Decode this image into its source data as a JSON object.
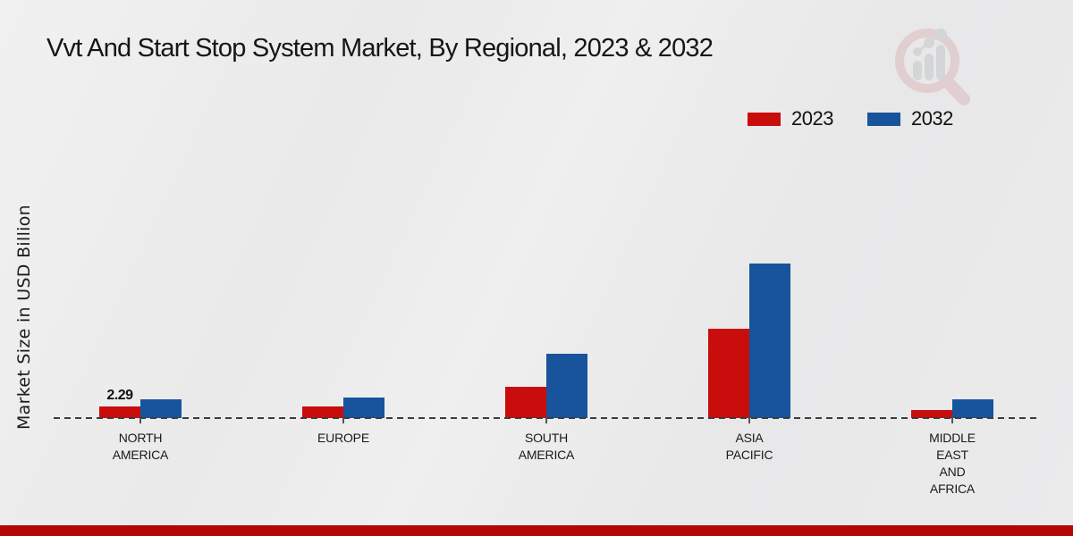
{
  "title": "Vvt And Start Stop System Market, By Regional, 2023 & 2032",
  "ylabel": "Market Size in USD Billion",
  "legend": {
    "position": "top-right",
    "items": [
      {
        "label": "2023",
        "color": "#c90d0d"
      },
      {
        "label": "2032",
        "color": "#17549b"
      }
    ]
  },
  "branding": {
    "logo_icon": "bar-chart-magnifier-logo"
  },
  "footer": {
    "accent_color": "#b40606"
  },
  "chart_data": {
    "type": "bar",
    "title": "Vvt And Start Stop System Market, By Regional, 2023 & 2032",
    "xlabel": "",
    "ylabel": "Market Size in USD Billion",
    "categories": [
      "NORTH AMERICA",
      "EUROPE",
      "SOUTH AMERICA",
      "ASIA PACIFIC",
      "MIDDLE EAST AND AFRICA"
    ],
    "category_label_lines": [
      [
        "NORTH",
        "AMERICA"
      ],
      [
        "EUROPE"
      ],
      [
        "SOUTH",
        "AMERICA"
      ],
      [
        "ASIA",
        "PACIFIC"
      ],
      [
        "MIDDLE",
        "EAST",
        "AND",
        "AFRICA"
      ]
    ],
    "series": [
      {
        "name": "2023",
        "color": "#c90d0d",
        "values": [
          2.29,
          2.2,
          6.0,
          17.2,
          1.6
        ]
      },
      {
        "name": "2032",
        "color": "#17549b",
        "values": [
          3.7,
          3.9,
          12.4,
          29.8,
          3.6
        ]
      }
    ],
    "data_labels": [
      {
        "series": "2023",
        "category": "NORTH AMERICA",
        "text": "2.29"
      }
    ],
    "ylim": [
      0,
      32
    ],
    "grid": false,
    "axis_ticks_visible": false,
    "baseline_style": "dashed",
    "legend_position": "top-right"
  }
}
